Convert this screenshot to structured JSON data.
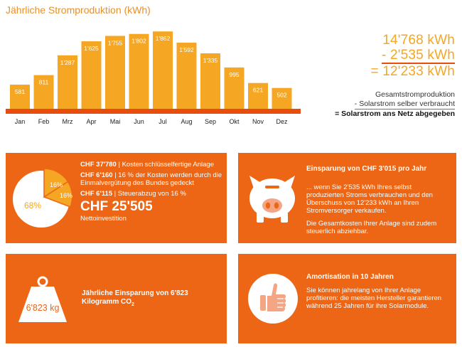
{
  "chart_data": {
    "type": "bar",
    "title": "Jährliche Stromproduktion (kWh)",
    "categories": [
      "Jan",
      "Feb",
      "Mrz",
      "Apr",
      "Mai",
      "Jun",
      "Jul",
      "Aug",
      "Sep",
      "Okt",
      "Nov",
      "Dez"
    ],
    "values": [
      581,
      811,
      1287,
      1625,
      1755,
      1802,
      1862,
      1592,
      1335,
      995,
      621,
      502
    ],
    "value_labels": [
      "581",
      "811",
      "1'287",
      "1'625",
      "1'755",
      "1'802",
      "1'862",
      "1'592",
      "1'335",
      "995",
      "621",
      "502"
    ],
    "ylim": [
      0,
      1900
    ],
    "grid": false,
    "bar_color": "#f5a623",
    "baseline_color": "#e84d0e"
  },
  "totals": {
    "line1": "14'768 kWh",
    "line2": "- 2'535 kWh",
    "line3": "= 12'233 kWh"
  },
  "legend": {
    "total": "Gesamtstromproduktion",
    "self_use": "- Solarstrom selber verbraucht",
    "grid_feed": "= Solarstrom ans Netz abgegeben"
  },
  "cost_card": {
    "pie": {
      "slices": [
        {
          "label": "68%",
          "value": 68,
          "color": "#ffffff"
        },
        {
          "label": "16%",
          "value": 16,
          "color": "#f5a623"
        },
        {
          "label": "16%",
          "value": 16,
          "color": "#f5a623"
        }
      ]
    },
    "item1_amount": "CHF 37'780",
    "item1_text": " | Kosten schlüsselfertige Anlage",
    "item2_amount": "CHF 6'160",
    "item2_text": " | 16 % der Kosten werden durch die Einmalvergütung des Bundes gedeckt",
    "item3_amount": "CHF 6'115",
    "item3_text": " | Steuerabzug von 16 %",
    "net_amount": "CHF 25'505",
    "net_label": "Nettoinvestition"
  },
  "savings_card": {
    "icon": "piggy-bank-icon",
    "title": "Einsparung von CHF 3'015 pro Jahr",
    "para1": "... wenn Sie 2'535 kWh Ihres selbst produzierten Stroms verbrauchen und den Überschuss von 12'233 kWh an Ihren Stromversorger verkaufen.",
    "para2": "Die Gesamtkosten Ihrer Anlage sind zudem steuerlich abziehbar."
  },
  "co2_card": {
    "icon": "weight-icon",
    "weight_label": "6'823 kg",
    "text_main": "Jährliche Einsparung von 6'823 Kilogramm CO",
    "text_sub": "2"
  },
  "amort_card": {
    "icon": "thumbs-up-icon",
    "title": "Amortisation in 10 Jahren",
    "text": "Sie können jahrelang von Ihrer Anlage profitieren: die meisten Hersteller garantieren während 25 Jahren für ihre Solarmodule."
  },
  "colors": {
    "orange": "#ec6615",
    "bar": "#f5a623",
    "accent": "#e84d0e"
  }
}
